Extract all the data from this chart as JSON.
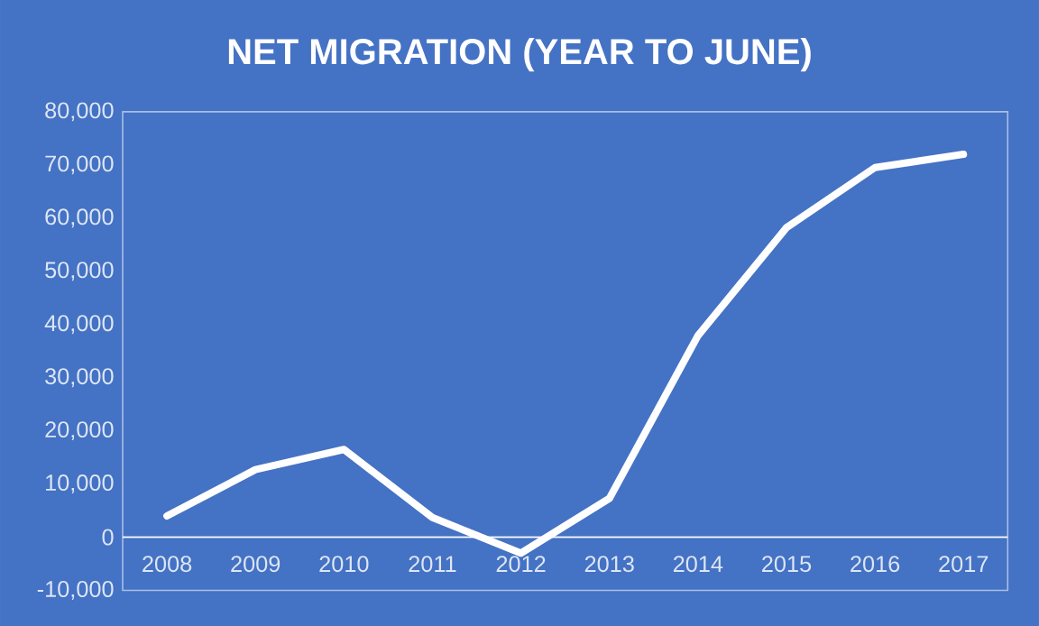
{
  "chart_data": {
    "type": "line",
    "title": "NET MIGRATION  (YEAR TO JUNE)",
    "categories": [
      "2008",
      "2009",
      "2010",
      "2011",
      "2012",
      "2013",
      "2014",
      "2015",
      "2016",
      "2017"
    ],
    "values": [
      4000,
      12700,
      16500,
      3700,
      -3000,
      7300,
      37900,
      58200,
      69500,
      72000
    ],
    "color": "#ffffff",
    "marker": "none",
    "line_style": "solid",
    "grid": false,
    "ylim": [
      -10000,
      80000
    ],
    "yticks": [
      {
        "value": -10000,
        "label": "-10,000"
      },
      0,
      {
        "value": 10000,
        "label": "10,000"
      },
      {
        "value": 20000,
        "label": "20,000"
      },
      {
        "value": 30000,
        "label": "30,000"
      },
      {
        "value": 40000,
        "label": "40,000"
      },
      {
        "value": 50000,
        "label": "50,000"
      },
      {
        "value": 60000,
        "label": "60,000"
      },
      {
        "value": 70000,
        "label": "70,000"
      },
      {
        "value": 80000,
        "label": "80,000"
      }
    ]
  }
}
